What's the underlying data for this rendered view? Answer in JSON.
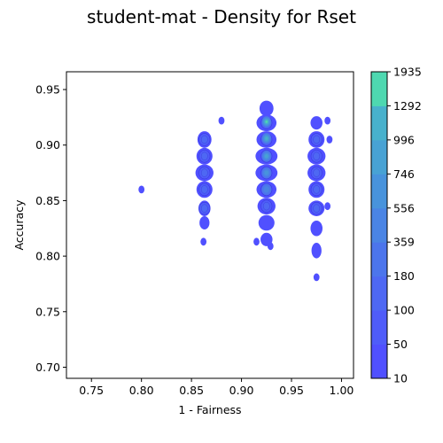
{
  "chart_data": {
    "type": "density",
    "title": "student-mat - Density for Rset",
    "xlabel": "1 - Fairness",
    "ylabel": "Accuracy",
    "xlim": [
      0.725,
      1.012
    ],
    "ylim": [
      0.69,
      0.966
    ],
    "xticks": [
      "0.75",
      "0.80",
      "0.85",
      "0.90",
      "0.95",
      "1.00"
    ],
    "xtick_values": [
      0.75,
      0.8,
      0.85,
      0.9,
      0.95,
      1.0
    ],
    "yticks": [
      "0.70",
      "0.75",
      "0.80",
      "0.85",
      "0.90",
      "0.95"
    ],
    "ytick_values": [
      0.7,
      0.75,
      0.8,
      0.85,
      0.9,
      0.95
    ],
    "colorbar": {
      "levels": [
        "10",
        "50",
        "100",
        "180",
        "359",
        "556",
        "746",
        "996",
        "1292",
        "1935"
      ],
      "colors": [
        "#5050ff",
        "#4f5cf9",
        "#4e68f3",
        "#4c75ec",
        "#4a84e4",
        "#4893dc",
        "#48a2d4",
        "#48b1cc",
        "#4ed8b0"
      ]
    },
    "grid": false,
    "clusters": [
      {
        "x": 0.863,
        "blobs": [
          {
            "y": 0.905,
            "sx": 0.007,
            "sy": 0.0075
          },
          {
            "y": 0.89,
            "sx": 0.008,
            "sy": 0.0075
          },
          {
            "y": 0.875,
            "sx": 0.009,
            "sy": 0.0075
          },
          {
            "y": 0.86,
            "sx": 0.008,
            "sy": 0.0075
          },
          {
            "y": 0.843,
            "sx": 0.006,
            "sy": 0.007
          },
          {
            "y": 0.83,
            "sx": 0.005,
            "sy": 0.006
          }
        ],
        "peaks": [
          0.905,
          0.89,
          0.875,
          0.86,
          0.843
        ]
      },
      {
        "x": 0.925,
        "blobs": [
          {
            "y": 0.933,
            "sx": 0.007,
            "sy": 0.007
          },
          {
            "y": 0.92,
            "sx": 0.01,
            "sy": 0.0075
          },
          {
            "y": 0.905,
            "sx": 0.01,
            "sy": 0.0075
          },
          {
            "y": 0.89,
            "sx": 0.011,
            "sy": 0.0075
          },
          {
            "y": 0.875,
            "sx": 0.011,
            "sy": 0.0075
          },
          {
            "y": 0.86,
            "sx": 0.01,
            "sy": 0.0075
          },
          {
            "y": 0.845,
            "sx": 0.009,
            "sy": 0.0075
          },
          {
            "y": 0.83,
            "sx": 0.008,
            "sy": 0.007
          },
          {
            "y": 0.815,
            "sx": 0.006,
            "sy": 0.006
          }
        ],
        "peaks": [
          0.92,
          0.905,
          0.89,
          0.875,
          0.86,
          0.845
        ]
      },
      {
        "x": 0.975,
        "blobs": [
          {
            "y": 0.92,
            "sx": 0.006,
            "sy": 0.006
          },
          {
            "y": 0.905,
            "sx": 0.008,
            "sy": 0.0075
          },
          {
            "y": 0.89,
            "sx": 0.009,
            "sy": 0.0075
          },
          {
            "y": 0.875,
            "sx": 0.009,
            "sy": 0.0075
          },
          {
            "y": 0.86,
            "sx": 0.008,
            "sy": 0.0075
          },
          {
            "y": 0.843,
            "sx": 0.008,
            "sy": 0.007
          },
          {
            "y": 0.825,
            "sx": 0.006,
            "sy": 0.007
          },
          {
            "y": 0.805,
            "sx": 0.005,
            "sy": 0.007
          }
        ],
        "peaks": [
          0.905,
          0.89,
          0.875,
          0.86,
          0.843
        ]
      }
    ],
    "small_blobs": [
      {
        "x": 0.88,
        "y": 0.922
      },
      {
        "x": 0.986,
        "y": 0.922
      },
      {
        "x": 0.988,
        "y": 0.905
      },
      {
        "x": 0.986,
        "y": 0.845
      },
      {
        "x": 0.915,
        "y": 0.813
      },
      {
        "x": 0.929,
        "y": 0.809
      },
      {
        "x": 0.975,
        "y": 0.781
      },
      {
        "x": 0.862,
        "y": 0.813
      },
      {
        "x": 0.8,
        "y": 0.86
      }
    ],
    "hotspots": [
      {
        "x": 0.925,
        "y": 0.921,
        "level": 8
      },
      {
        "x": 0.925,
        "y": 0.906,
        "level": 7
      },
      {
        "x": 0.925,
        "y": 0.89,
        "level": 6
      },
      {
        "x": 0.925,
        "y": 0.875,
        "level": 5
      },
      {
        "x": 0.925,
        "y": 0.86,
        "level": 4
      }
    ]
  }
}
